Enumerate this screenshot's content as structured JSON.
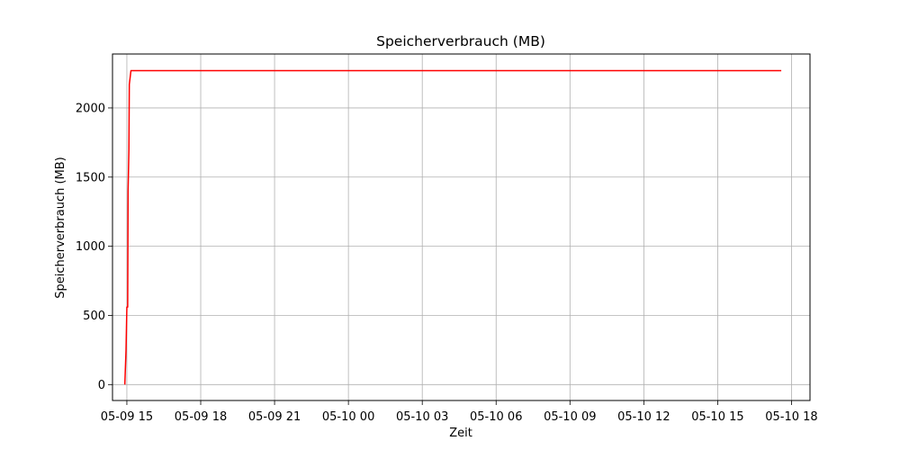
{
  "chart_data": {
    "type": "line",
    "title": "Speicherverbrauch (MB)",
    "xlabel": "Zeit",
    "ylabel": "Speicherverbrauch (MB)",
    "grid": true,
    "x_ticks": [
      "05-09 15",
      "05-09 18",
      "05-09 21",
      "05-10 00",
      "05-10 03",
      "05-10 06",
      "05-10 09",
      "05-10 12",
      "05-10 15",
      "05-10 18"
    ],
    "y_ticks": [
      "0",
      "500",
      "1000",
      "1500",
      "2000"
    ],
    "xlim": [
      "2024-05-09 14:25",
      "2024-05-10 18:45"
    ],
    "ylim": [
      -115,
      2390
    ],
    "series": [
      {
        "color": "#ff0000",
        "x": [
          "2024-05-09 14:55",
          "2024-05-09 14:58",
          "2024-05-09 15:00",
          "2024-05-09 15:02",
          "2024-05-09 15:03",
          "2024-05-09 15:05",
          "2024-05-09 15:06",
          "2024-05-09 15:08",
          "2024-05-09 15:10",
          "2024-05-09 15:12",
          "2024-05-09 15:13",
          "2024-05-10 17:35"
        ],
        "y": [
          0,
          250,
          560,
          560,
          1400,
          1700,
          2170,
          2220,
          2270,
          2270,
          2270,
          2270
        ]
      }
    ]
  }
}
